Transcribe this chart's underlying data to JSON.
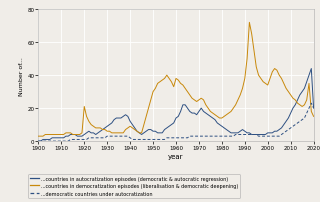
{
  "title": "",
  "xlabel": "year",
  "ylabel": "Number of...",
  "xlim": [
    1900,
    2020
  ],
  "ylim": [
    0,
    80
  ],
  "yticks": [
    0,
    20,
    40,
    60,
    80
  ],
  "xticks": [
    1900,
    1910,
    1920,
    1930,
    1940,
    1950,
    1960,
    1970,
    1980,
    1990,
    2000,
    2010,
    2020
  ],
  "bg_color": "#f0ede8",
  "grid_color": "#ffffff",
  "line1_color": "#2e5082",
  "line2_color": "#c8880a",
  "line3_color": "#2e5082",
  "legend": [
    "...countries in autocratization episodes (democratic & autocratic regression)",
    "...countries in democratization episodes (liberalisation & democratic deepening)",
    "...democratic countries under autocratization"
  ],
  "years": [
    1900,
    1901,
    1902,
    1903,
    1904,
    1905,
    1906,
    1907,
    1908,
    1909,
    1910,
    1911,
    1912,
    1913,
    1914,
    1915,
    1916,
    1917,
    1918,
    1919,
    1920,
    1921,
    1922,
    1923,
    1924,
    1925,
    1926,
    1927,
    1928,
    1929,
    1930,
    1931,
    1932,
    1933,
    1934,
    1935,
    1936,
    1937,
    1938,
    1939,
    1940,
    1941,
    1942,
    1943,
    1944,
    1945,
    1946,
    1947,
    1948,
    1949,
    1950,
    1951,
    1952,
    1953,
    1954,
    1955,
    1956,
    1957,
    1958,
    1959,
    1960,
    1961,
    1962,
    1963,
    1964,
    1965,
    1966,
    1967,
    1968,
    1969,
    1970,
    1971,
    1972,
    1973,
    1974,
    1975,
    1976,
    1977,
    1978,
    1979,
    1980,
    1981,
    1982,
    1983,
    1984,
    1985,
    1986,
    1987,
    1988,
    1989,
    1990,
    1991,
    1992,
    1993,
    1994,
    1995,
    1996,
    1997,
    1998,
    1999,
    2000,
    2001,
    2002,
    2003,
    2004,
    2005,
    2006,
    2007,
    2008,
    2009,
    2010,
    2011,
    2012,
    2013,
    2014,
    2015,
    2016,
    2017,
    2018,
    2019,
    2020
  ],
  "autocratization": [
    0,
    0,
    1,
    1,
    1,
    1,
    2,
    2,
    2,
    2,
    2,
    2,
    3,
    3,
    4,
    4,
    4,
    3,
    3,
    3,
    4,
    5,
    6,
    5,
    5,
    4,
    5,
    6,
    7,
    8,
    9,
    10,
    11,
    13,
    14,
    14,
    14,
    15,
    16,
    15,
    12,
    10,
    8,
    6,
    5,
    4,
    5,
    6,
    7,
    7,
    6,
    6,
    5,
    5,
    5,
    7,
    8,
    9,
    10,
    11,
    14,
    15,
    18,
    22,
    22,
    20,
    18,
    17,
    17,
    16,
    18,
    20,
    18,
    17,
    16,
    15,
    14,
    13,
    11,
    10,
    9,
    8,
    7,
    6,
    5,
    5,
    5,
    5,
    6,
    7,
    6,
    5,
    5,
    4,
    4,
    4,
    4,
    4,
    4,
    4,
    5,
    5,
    5,
    6,
    6,
    7,
    8,
    10,
    12,
    14,
    17,
    20,
    22,
    25,
    28,
    30,
    32,
    36,
    40,
    44,
    20
  ],
  "democratization": [
    3,
    3,
    3,
    4,
    4,
    4,
    4,
    4,
    4,
    4,
    4,
    4,
    5,
    5,
    5,
    4,
    4,
    4,
    4,
    5,
    21,
    15,
    12,
    10,
    9,
    8,
    8,
    8,
    7,
    7,
    6,
    6,
    5,
    5,
    5,
    5,
    5,
    5,
    7,
    8,
    9,
    8,
    7,
    6,
    5,
    5,
    10,
    15,
    20,
    25,
    30,
    32,
    35,
    36,
    37,
    38,
    40,
    38,
    36,
    33,
    38,
    37,
    35,
    34,
    32,
    30,
    28,
    26,
    25,
    24,
    25,
    26,
    25,
    22,
    20,
    18,
    17,
    16,
    15,
    14,
    14,
    15,
    16,
    17,
    18,
    20,
    22,
    25,
    28,
    32,
    38,
    50,
    72,
    65,
    55,
    45,
    40,
    38,
    36,
    35,
    34,
    38,
    42,
    44,
    43,
    40,
    38,
    35,
    32,
    30,
    28,
    26,
    25,
    23,
    22,
    21,
    22,
    25,
    35,
    18,
    15
  ],
  "under_autocratization": [
    0,
    0,
    0,
    0,
    0,
    0,
    0,
    0,
    0,
    0,
    0,
    0,
    0,
    0,
    1,
    1,
    1,
    1,
    1,
    1,
    1,
    1,
    2,
    2,
    2,
    2,
    2,
    2,
    2,
    2,
    3,
    3,
    3,
    3,
    3,
    3,
    3,
    3,
    3,
    3,
    2,
    1,
    1,
    1,
    1,
    1,
    1,
    1,
    1,
    1,
    1,
    1,
    1,
    1,
    1,
    1,
    2,
    2,
    2,
    2,
    2,
    2,
    2,
    2,
    2,
    2,
    3,
    3,
    3,
    3,
    3,
    3,
    3,
    3,
    3,
    3,
    3,
    3,
    3,
    3,
    3,
    3,
    3,
    3,
    3,
    3,
    4,
    4,
    4,
    4,
    4,
    4,
    4,
    4,
    4,
    4,
    3,
    3,
    3,
    3,
    3,
    3,
    3,
    3,
    3,
    3,
    4,
    5,
    6,
    7,
    8,
    9,
    10,
    11,
    12,
    13,
    14,
    17,
    20,
    23,
    20
  ],
  "figsize": [
    3.2,
    2.03
  ],
  "dpi": 100
}
